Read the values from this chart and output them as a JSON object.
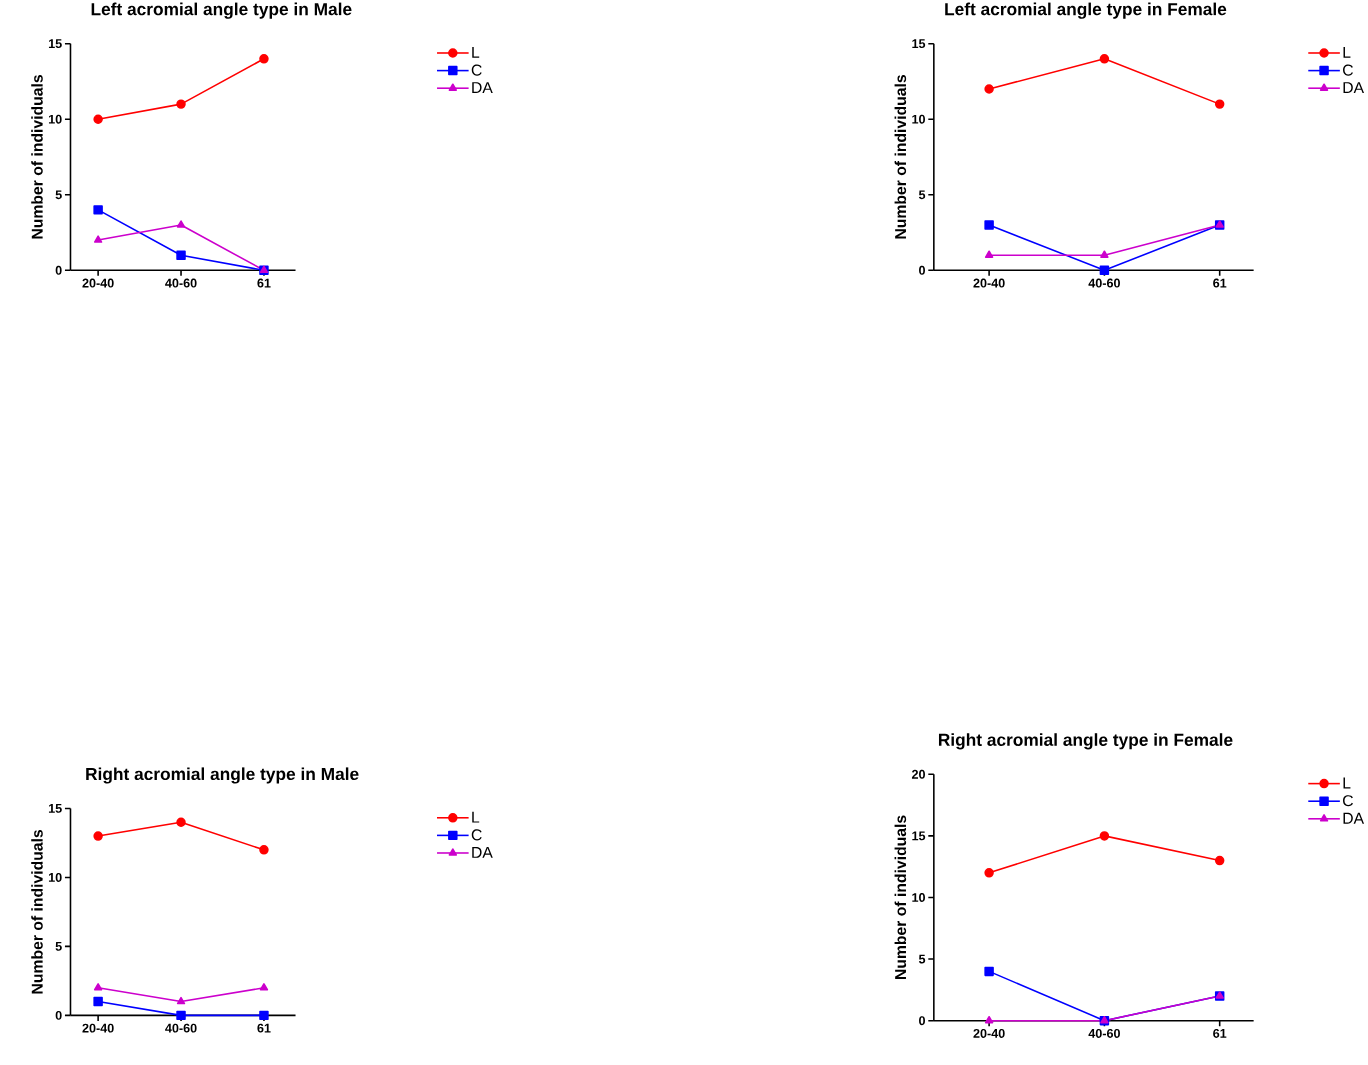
{
  "chart_data": [
    {
      "type": "line",
      "title": "Left acromial angle type in Male",
      "ylabel": "Number of individuals",
      "categories": [
        "20-40",
        "40-60",
        "61"
      ],
      "ylim": [
        0,
        15
      ],
      "yticks": [
        0,
        5,
        10,
        15
      ],
      "legend": "top right",
      "series": [
        {
          "name": "L",
          "color": "#ff0000",
          "marker": "circle",
          "values": [
            10,
            11,
            14
          ]
        },
        {
          "name": "C",
          "color": "#0000ff",
          "marker": "square",
          "values": [
            4,
            1,
            0
          ]
        },
        {
          "name": "DA",
          "color": "#cc00cc",
          "marker": "triangle",
          "values": [
            2,
            3,
            0
          ]
        }
      ]
    },
    {
      "type": "line",
      "title": "Left acromial angle type in Female",
      "ylabel": "Number of individuals",
      "categories": [
        "20-40",
        "40-60",
        "61"
      ],
      "ylim": [
        0,
        15
      ],
      "yticks": [
        0,
        5,
        10,
        15
      ],
      "legend": "top right",
      "series": [
        {
          "name": "L",
          "color": "#ff0000",
          "marker": "circle",
          "values": [
            12,
            14,
            11
          ]
        },
        {
          "name": "C",
          "color": "#0000ff",
          "marker": "square",
          "values": [
            3,
            0,
            3
          ]
        },
        {
          "name": "DA",
          "color": "#cc00cc",
          "marker": "triangle",
          "values": [
            1,
            1,
            3
          ]
        }
      ]
    },
    {
      "type": "line",
      "title": "Right acromial angle type in Male",
      "ylabel": "Number of individuals",
      "categories": [
        "20-40",
        "40-60",
        "61"
      ],
      "ylim": [
        0,
        15
      ],
      "yticks": [
        0,
        5,
        10,
        15
      ],
      "legend": "top right",
      "series": [
        {
          "name": "L",
          "color": "#ff0000",
          "marker": "circle",
          "values": [
            13,
            14,
            12
          ]
        },
        {
          "name": "C",
          "color": "#0000ff",
          "marker": "square",
          "values": [
            1,
            0,
            0
          ]
        },
        {
          "name": "DA",
          "color": "#cc00cc",
          "marker": "triangle",
          "values": [
            2,
            1,
            2
          ]
        }
      ]
    },
    {
      "type": "line",
      "title": "Right acromial angle type in Female",
      "ylabel": "Number of individuals",
      "categories": [
        "20-40",
        "40-60",
        "61"
      ],
      "ylim": [
        0,
        20
      ],
      "yticks": [
        0,
        5,
        10,
        15,
        20
      ],
      "legend": "top right",
      "series": [
        {
          "name": "L",
          "color": "#ff0000",
          "marker": "circle",
          "values": [
            12,
            15,
            13
          ]
        },
        {
          "name": "C",
          "color": "#0000ff",
          "marker": "square",
          "values": [
            4,
            0,
            2
          ]
        },
        {
          "name": "DA",
          "color": "#cc00cc",
          "marker": "triangle",
          "values": [
            0,
            0,
            2
          ]
        }
      ]
    }
  ]
}
